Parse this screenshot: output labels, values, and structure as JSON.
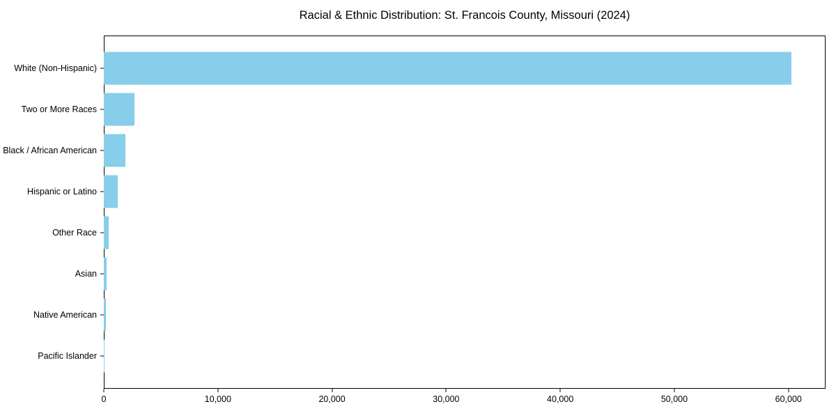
{
  "chart_data": {
    "type": "bar",
    "orientation": "horizontal",
    "title": "Racial & Ethnic Distribution: St. Francois County, Missouri (2024)",
    "categories": [
      "White (Non-Hispanic)",
      "Two or More Races",
      "Black / African American",
      "Hispanic or Latino",
      "Other Race",
      "Asian",
      "Native American",
      "Pacific Islander"
    ],
    "values": [
      60250,
      2710,
      1870,
      1220,
      440,
      265,
      200,
      30
    ],
    "bar_color": "#87CEEB",
    "xlabel": "",
    "ylabel": "",
    "xlim": [
      0,
      63250
    ],
    "xticks": [
      0,
      10000,
      20000,
      30000,
      40000,
      50000,
      60000
    ],
    "xtick_labels": [
      "0",
      "10,000",
      "20,000",
      "30,000",
      "40,000",
      "50,000",
      "60,000"
    ],
    "grid": false,
    "legend": false,
    "frame": "full-box",
    "text_color": "#000000",
    "spine_color": "#000000"
  }
}
